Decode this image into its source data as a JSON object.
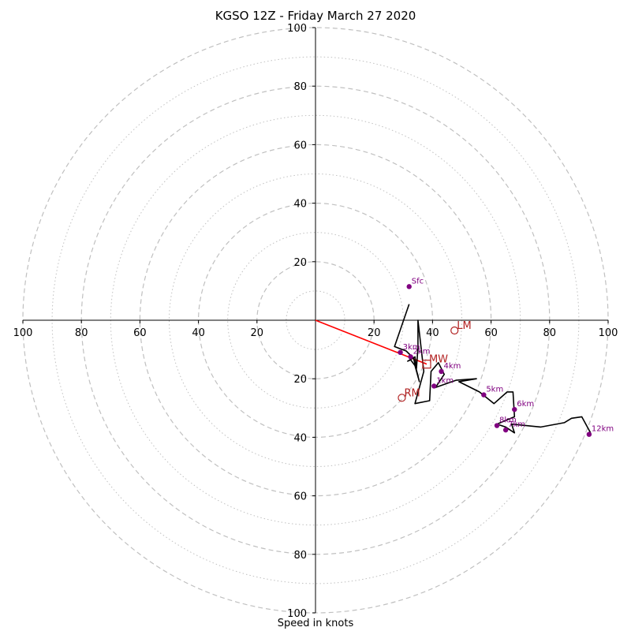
{
  "chart_data": {
    "type": "scatter",
    "title": "KGSO 12Z - Friday March 27 2020",
    "xlabel": "Speed in knots",
    "xlim": [
      -100,
      100
    ],
    "ylim": [
      -100,
      100
    ],
    "x_tick_labels": [
      "100",
      "80",
      "60",
      "40",
      "20",
      "20",
      "40",
      "60",
      "80",
      "100"
    ],
    "y_tick_labels": [
      "100",
      "80",
      "60",
      "40",
      "20",
      "20",
      "40",
      "60",
      "80",
      "100"
    ],
    "range_rings_dashed": [
      20,
      40,
      60,
      80,
      100
    ],
    "range_rings_dotted": [
      10,
      30,
      50,
      70,
      90
    ],
    "hodograph_trace": [
      [
        32,
        5.5
      ],
      [
        27,
        -9
      ],
      [
        31,
        -10.5
      ],
      [
        33.5,
        -13
      ],
      [
        34.5,
        -17
      ],
      [
        35.5,
        -21
      ],
      [
        34,
        -15.5
      ],
      [
        32.5,
        -13.5
      ],
      [
        31.5,
        -14
      ],
      [
        34,
        -12.5
      ],
      [
        34.5,
        -16.5
      ],
      [
        35,
        -9.5
      ],
      [
        35,
        0
      ],
      [
        37,
        -17.5
      ],
      [
        34,
        -28.5
      ],
      [
        39,
        -27.5
      ],
      [
        39.5,
        -17.5
      ],
      [
        42,
        -14.5
      ],
      [
        44,
        -18.5
      ],
      [
        41,
        -23
      ],
      [
        48,
        -20.5
      ],
      [
        55,
        -20
      ],
      [
        49,
        -21
      ],
      [
        56,
        -24.5
      ],
      [
        61,
        -28.5
      ],
      [
        65.5,
        -24.5
      ],
      [
        67.5,
        -24.5
      ],
      [
        68,
        -33
      ],
      [
        62,
        -35.5
      ],
      [
        65,
        -36.5
      ],
      [
        68,
        -38.5
      ],
      [
        67,
        -35.5
      ],
      [
        77,
        -36.5
      ],
      [
        85,
        -35
      ],
      [
        87.5,
        -33.5
      ],
      [
        91,
        -33
      ],
      [
        94,
        -38.5
      ]
    ],
    "height_points": [
      {
        "label": "Sfc",
        "x": 32,
        "y": 11.5
      },
      {
        "label": "1km",
        "x": 40.5,
        "y": -22.5
      },
      {
        "label": "2km",
        "x": 32.5,
        "y": -12.5
      },
      {
        "label": "3km",
        "x": 29,
        "y": -11
      },
      {
        "label": "4km",
        "x": 43,
        "y": -17.5
      },
      {
        "label": "5km",
        "x": 57.5,
        "y": -25.5
      },
      {
        "label": "6km",
        "x": 68,
        "y": -30.5
      },
      {
        "label": "7km",
        "x": 65,
        "y": -37.5
      },
      {
        "label": "8km",
        "x": 62,
        "y": -36
      },
      {
        "label": "12km",
        "x": 93.5,
        "y": -39
      }
    ],
    "storm_motions": [
      {
        "label": "LM",
        "marker": "circle",
        "x": 47.5,
        "y": -3.5
      },
      {
        "label": "MW",
        "marker": "square",
        "x": 38,
        "y": -15
      },
      {
        "label": "RM",
        "marker": "circle",
        "x": 29.5,
        "y": -26.5
      }
    ],
    "mean_wind_vector": {
      "from": [
        0,
        0
      ],
      "to": [
        38,
        -15
      ]
    }
  },
  "colors": {
    "trace": "#000000",
    "points": "#800080",
    "storm_motion": "#b22222",
    "mean_vector": "#ff0000",
    "rings": "#c0c0c0",
    "axes": "#000000"
  }
}
